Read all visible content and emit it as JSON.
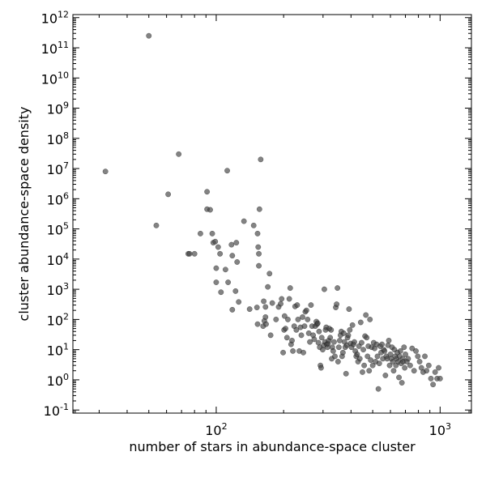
{
  "chart_data": {
    "type": "scatter",
    "xlabel": "number of stars in abundance-space cluster",
    "ylabel": "cluster abundance-space density",
    "x_scale": "log",
    "y_scale": "log",
    "xlim": [
      22.9,
      1380
    ],
    "ylim": [
      0.079,
      1260000000000.0
    ],
    "grid": false,
    "x_ticks": [
      {
        "value": 100,
        "base": "10",
        "exp": "2"
      },
      {
        "value": 1000,
        "base": "10",
        "exp": "3"
      }
    ],
    "y_ticks": [
      {
        "value": 0.1,
        "base": "10",
        "exp": "-1"
      },
      {
        "value": 1,
        "base": "10",
        "exp": "0"
      },
      {
        "value": 10,
        "base": "10",
        "exp": "1"
      },
      {
        "value": 100,
        "base": "10",
        "exp": "2"
      },
      {
        "value": 1000,
        "base": "10",
        "exp": "3"
      },
      {
        "value": 10000,
        "base": "10",
        "exp": "4"
      },
      {
        "value": 100000,
        "base": "10",
        "exp": "5"
      },
      {
        "value": 1000000,
        "base": "10",
        "exp": "6"
      },
      {
        "value": 10000000,
        "base": "10",
        "exp": "7"
      },
      {
        "value": 100000000,
        "base": "10",
        "exp": "8"
      },
      {
        "value": 1000000000,
        "base": "10",
        "exp": "9"
      },
      {
        "value": 10000000000,
        "base": "10",
        "exp": "10"
      },
      {
        "value": 100000000000,
        "base": "10",
        "exp": "11"
      },
      {
        "value": 1000000000000,
        "base": "10",
        "exp": "12"
      }
    ],
    "marker_color": "#404040",
    "marker_opacity": 0.65,
    "series": [
      {
        "points": [
          [
            50,
            250000000000.0
          ],
          [
            32,
            8000000.0
          ],
          [
            68,
            30000000.0
          ],
          [
            54,
            130000.0
          ],
          [
            61,
            1400000.0
          ],
          [
            75,
            15000.0
          ],
          [
            76,
            15000.0
          ],
          [
            80,
            15000.0
          ],
          [
            85,
            70000.0
          ],
          [
            91,
            450000.0
          ],
          [
            91,
            1700000.0
          ],
          [
            94,
            430000.0
          ],
          [
            96,
            70000.0
          ],
          [
            97,
            35000.0
          ],
          [
            99,
            38000.0
          ],
          [
            100,
            5000.0
          ],
          [
            102,
            25000.0
          ],
          [
            104,
            15000.0
          ],
          [
            100,
            1700.0
          ],
          [
            105,
            800
          ],
          [
            110,
            4500.0
          ],
          [
            112,
            8500000.0
          ],
          [
            113,
            1700.0
          ],
          [
            117,
            30000.0
          ],
          [
            118,
            13000.0
          ],
          [
            118,
            210
          ],
          [
            122,
            870
          ],
          [
            123,
            35000.0
          ],
          [
            124,
            8000.0
          ],
          [
            126,
            380
          ],
          [
            133,
            180000.0
          ],
          [
            141,
            220
          ],
          [
            147,
            130000.0
          ],
          [
            153,
            70000.0
          ],
          [
            154,
            25000.0
          ],
          [
            155,
            15000.0
          ],
          [
            155,
            6000.0
          ],
          [
            156,
            450000.0
          ],
          [
            158,
            20000000.0
          ],
          [
            152,
            250
          ],
          [
            153,
            70
          ],
          [
            162,
            60
          ],
          [
            163,
            400
          ],
          [
            164,
            90
          ],
          [
            166,
            120
          ],
          [
            166,
            260
          ],
          [
            167,
            70
          ],
          [
            170,
            1200.0
          ],
          [
            173,
            3300.0
          ],
          [
            175,
            30
          ],
          [
            178,
            350
          ],
          [
            185,
            100
          ],
          [
            190,
            260
          ],
          [
            194,
            330
          ],
          [
            196,
            480
          ],
          [
            199,
            8
          ],
          [
            201,
            45
          ],
          [
            202,
            130
          ],
          [
            204,
            50
          ],
          [
            207,
            25
          ],
          [
            209,
            100
          ],
          [
            212,
            480
          ],
          [
            214,
            1100.0
          ],
          [
            216,
            15
          ],
          [
            218,
            20
          ],
          [
            220,
            9
          ],
          [
            223,
            60
          ],
          [
            225,
            270
          ],
          [
            228,
            45
          ],
          [
            230,
            300
          ],
          [
            232,
            100
          ],
          [
            235,
            9
          ],
          [
            238,
            55
          ],
          [
            240,
            30
          ],
          [
            243,
            120
          ],
          [
            245,
            8
          ],
          [
            248,
            60
          ],
          [
            250,
            180
          ],
          [
            253,
            200
          ],
          [
            256,
            100
          ],
          [
            259,
            35
          ],
          [
            262,
            18
          ],
          [
            265,
            300
          ],
          [
            268,
            60
          ],
          [
            271,
            30
          ],
          [
            274,
            22
          ],
          [
            277,
            60
          ],
          [
            280,
            85
          ],
          [
            282,
            70
          ],
          [
            284,
            75
          ],
          [
            286,
            17
          ],
          [
            288,
            40
          ],
          [
            290,
            12
          ],
          [
            292,
            3
          ],
          [
            294,
            2.5
          ],
          [
            296,
            25
          ],
          [
            299,
            10
          ],
          [
            302,
            14
          ],
          [
            304,
            1000.0
          ],
          [
            306,
            18
          ],
          [
            308,
            45
          ],
          [
            310,
            55
          ],
          [
            312,
            15
          ],
          [
            314,
            12
          ],
          [
            316,
            16
          ],
          [
            318,
            20
          ],
          [
            320,
            50
          ],
          [
            323,
            25
          ],
          [
            326,
            45
          ],
          [
            328,
            5
          ],
          [
            330,
            12
          ],
          [
            333,
            9
          ],
          [
            336,
            18
          ],
          [
            339,
            6
          ],
          [
            342,
            250
          ],
          [
            345,
            320
          ],
          [
            348,
            1100.0
          ],
          [
            350,
            4
          ],
          [
            353,
            12
          ],
          [
            356,
            20
          ],
          [
            359,
            30
          ],
          [
            362,
            40
          ],
          [
            365,
            6
          ],
          [
            368,
            8
          ],
          [
            371,
            35
          ],
          [
            374,
            18
          ],
          [
            377,
            12
          ],
          [
            380,
            1.6
          ],
          [
            383,
            14
          ],
          [
            386,
            25
          ],
          [
            389,
            30
          ],
          [
            392,
            220
          ],
          [
            395,
            45
          ],
          [
            398,
            16
          ],
          [
            402,
            12
          ],
          [
            406,
            65
          ],
          [
            410,
            15
          ],
          [
            414,
            18
          ],
          [
            418,
            9
          ],
          [
            422,
            6
          ],
          [
            426,
            7
          ],
          [
            430,
            4
          ],
          [
            434,
            13
          ],
          [
            438,
            5
          ],
          [
            442,
            80
          ],
          [
            446,
            17
          ],
          [
            450,
            1.8
          ],
          [
            454,
            10
          ],
          [
            458,
            3
          ],
          [
            462,
            28
          ],
          [
            466,
            140
          ],
          [
            470,
            25
          ],
          [
            474,
            6
          ],
          [
            478,
            13
          ],
          [
            482,
            2
          ],
          [
            486,
            100
          ],
          [
            490,
            4.5
          ],
          [
            495,
            12
          ],
          [
            500,
            3
          ],
          [
            505,
            17
          ],
          [
            510,
            11
          ],
          [
            515,
            4
          ],
          [
            520,
            15
          ],
          [
            525,
            6
          ],
          [
            530,
            0.5
          ],
          [
            535,
            3.5
          ],
          [
            540,
            13
          ],
          [
            545,
            8
          ],
          [
            550,
            15
          ],
          [
            555,
            5
          ],
          [
            560,
            10
          ],
          [
            565,
            9
          ],
          [
            570,
            1.4
          ],
          [
            575,
            6
          ],
          [
            580,
            5
          ],
          [
            585,
            14
          ],
          [
            590,
            20
          ],
          [
            595,
            3
          ],
          [
            600,
            7
          ],
          [
            605,
            5
          ],
          [
            610,
            12
          ],
          [
            615,
            4
          ],
          [
            620,
            2
          ],
          [
            625,
            10
          ],
          [
            630,
            6
          ],
          [
            635,
            3
          ],
          [
            640,
            5
          ],
          [
            645,
            8
          ],
          [
            650,
            4
          ],
          [
            655,
            1.2
          ],
          [
            660,
            6
          ],
          [
            665,
            9
          ],
          [
            670,
            3.5
          ],
          [
            675,
            0.8
          ],
          [
            680,
            5
          ],
          [
            685,
            4
          ],
          [
            690,
            12
          ],
          [
            695,
            2.5
          ],
          [
            700,
            7
          ],
          [
            710,
            4
          ],
          [
            720,
            5
          ],
          [
            735,
            3
          ],
          [
            750,
            11
          ],
          [
            765,
            2
          ],
          [
            780,
            9
          ],
          [
            795,
            6
          ],
          [
            810,
            4
          ],
          [
            825,
            2.5
          ],
          [
            840,
            1.8
          ],
          [
            855,
            6
          ],
          [
            870,
            2
          ],
          [
            890,
            3
          ],
          [
            910,
            1.1
          ],
          [
            930,
            0.7
          ],
          [
            950,
            1.8
          ],
          [
            970,
            1.1
          ],
          [
            985,
            2.5
          ],
          [
            1000,
            1.1
          ]
        ]
      }
    ]
  }
}
